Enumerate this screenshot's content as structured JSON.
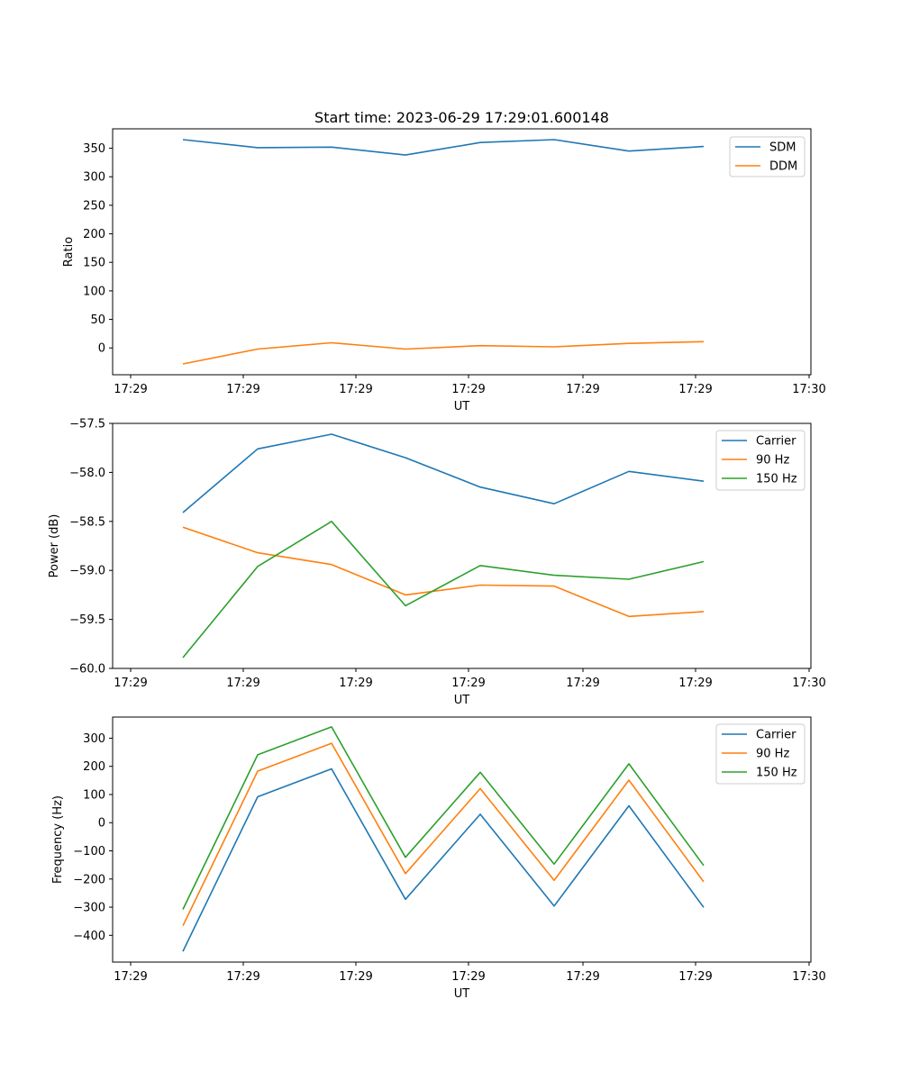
{
  "chart_data": [
    {
      "type": "line",
      "title": "Start time: 2023-06-29 17:29:01.600148",
      "xlabel": "UT",
      "ylabel": "Ratio",
      "x_ticks": [
        "17:29",
        "17:29",
        "17:29",
        "17:29",
        "17:29",
        "17:29",
        "17:30"
      ],
      "y_ticks": [
        "0",
        "50",
        "100",
        "150",
        "200",
        "250",
        "300",
        "350"
      ],
      "ylim": [
        -47,
        384
      ],
      "legend_position": "upper right",
      "series": [
        {
          "name": "SDM",
          "color": "#1f77b4",
          "values": [
            365,
            351,
            352,
            338,
            360,
            365,
            345,
            353
          ]
        },
        {
          "name": "DDM",
          "color": "#ff7f0e",
          "values": [
            -28,
            -2,
            9,
            -2,
            4,
            2,
            8,
            11
          ]
        }
      ]
    },
    {
      "type": "line",
      "title": "",
      "xlabel": "UT",
      "ylabel": "Power (dB)",
      "x_ticks": [
        "17:29",
        "17:29",
        "17:29",
        "17:29",
        "17:29",
        "17:29",
        "17:30"
      ],
      "y_ticks": [
        "−60.0",
        "−59.5",
        "−59.0",
        "−58.5",
        "−58.0",
        "−57.5"
      ],
      "ylim": [
        -60.0,
        -57.5
      ],
      "legend_position": "upper right",
      "series": [
        {
          "name": "Carrier",
          "color": "#1f77b4",
          "values": [
            -58.41,
            -57.76,
            -57.61,
            -57.85,
            -58.15,
            -58.32,
            -57.99,
            -58.09
          ]
        },
        {
          "name": "90 Hz",
          "color": "#ff7f0e",
          "values": [
            -58.56,
            -58.82,
            -58.94,
            -59.25,
            -59.15,
            -59.16,
            -59.47,
            -59.42
          ]
        },
        {
          "name": "150 Hz",
          "color": "#2ca02c",
          "values": [
            -59.89,
            -58.96,
            -58.5,
            -59.36,
            -58.95,
            -59.05,
            -59.09,
            -58.91
          ]
        }
      ]
    },
    {
      "type": "line",
      "title": "",
      "xlabel": "UT",
      "ylabel": "Frequency (Hz)",
      "x_ticks": [
        "17:29",
        "17:29",
        "17:29",
        "17:29",
        "17:29",
        "17:29",
        "17:30"
      ],
      "y_ticks": [
        "−400",
        "−300",
        "−200",
        "−100",
        "0",
        "100",
        "200",
        "300"
      ],
      "ylim": [
        -495,
        375
      ],
      "legend_position": "upper right",
      "series": [
        {
          "name": "Carrier",
          "color": "#1f77b4",
          "values": [
            -457,
            92,
            191,
            -272,
            30,
            -296,
            60,
            -301
          ]
        },
        {
          "name": "90 Hz",
          "color": "#ff7f0e",
          "values": [
            -366,
            183,
            282,
            -181,
            121,
            -205,
            151,
            -210
          ]
        },
        {
          "name": "150 Hz",
          "color": "#2ca02c",
          "values": [
            -308,
            241,
            340,
            -123,
            179,
            -147,
            209,
            -152
          ]
        }
      ]
    }
  ]
}
